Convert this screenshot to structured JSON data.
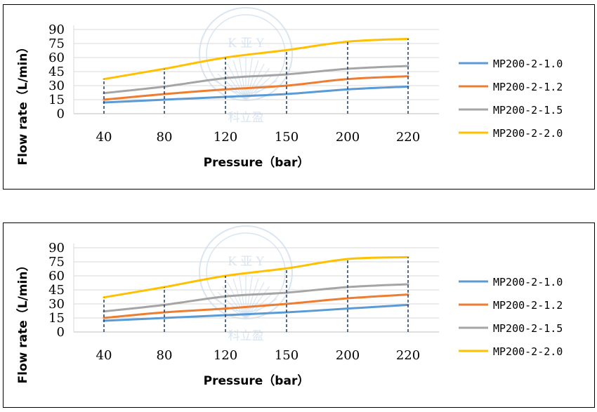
{
  "chart_data": [
    {
      "type": "line",
      "x_title": "Pressure（bar）",
      "y_title": "Flow rate（L/min）",
      "categories": [
        "40",
        "80",
        "120",
        "150",
        "200",
        "220"
      ],
      "yticks": [
        0,
        15,
        30,
        45,
        60,
        75,
        90
      ],
      "ylim": [
        0,
        90
      ],
      "grid": "horizontal",
      "dashed_verticals": true,
      "legend_position": "right",
      "series": [
        {
          "name": "MP200-2-1.0",
          "color": "#5b9bd5",
          "values": [
            12,
            15,
            18,
            21,
            26,
            29
          ]
        },
        {
          "name": "MP200-2-1.2",
          "color": "#ed7d31",
          "values": [
            15,
            21,
            26,
            30,
            37,
            40
          ]
        },
        {
          "name": "MP200-2-1.5",
          "color": "#a5a5a5",
          "values": [
            22,
            29,
            38,
            42,
            48,
            51
          ]
        },
        {
          "name": "MP200-2-2.0",
          "color": "#ffc000",
          "values": [
            37,
            48,
            60,
            68,
            77,
            80
          ]
        }
      ]
    },
    {
      "type": "line",
      "x_title": "Pressure（bar）",
      "y_title": "Flow rate（L/min）",
      "categories": [
        "40",
        "80",
        "120",
        "150",
        "200",
        "220"
      ],
      "yticks": [
        0,
        15,
        30,
        45,
        60,
        75,
        90
      ],
      "ylim": [
        0,
        90
      ],
      "grid": "horizontal",
      "dashed_verticals": true,
      "legend_position": "right",
      "series": [
        {
          "name": "MP200-2-1.0",
          "color": "#5b9bd5",
          "values": [
            12,
            15,
            18,
            21,
            25,
            29
          ]
        },
        {
          "name": "MP200-2-1.2",
          "color": "#ed7d31",
          "values": [
            15,
            21,
            25,
            30,
            36,
            40
          ]
        },
        {
          "name": "MP200-2-1.5",
          "color": "#a5a5a5",
          "values": [
            22,
            29,
            38,
            42,
            48,
            51
          ]
        },
        {
          "name": "MP200-2-2.0",
          "color": "#ffc000",
          "values": [
            37,
            48,
            60,
            68,
            78,
            80
          ]
        }
      ]
    }
  ],
  "watermark": {
    "letters": "K 亚 Y",
    "characters": "科立盈",
    "color": "#d6e3f1"
  }
}
